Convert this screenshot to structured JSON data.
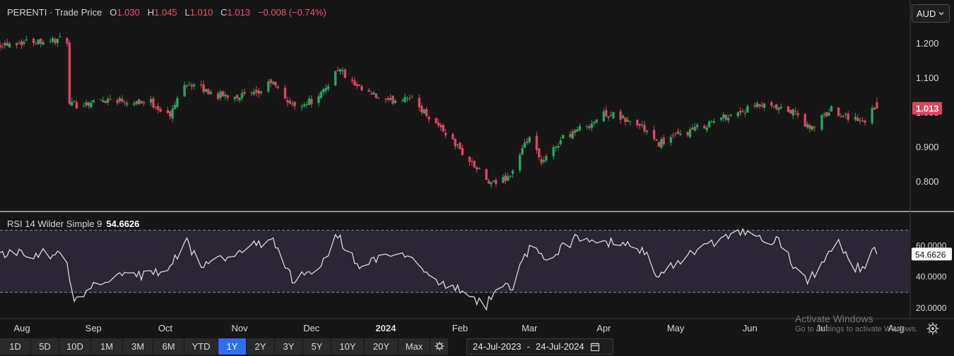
{
  "legend": {
    "title": "PERENTI · Trade Price",
    "open_key": "O",
    "open": "1.030",
    "high_key": "H",
    "high": "1.045",
    "low_key": "L",
    "low": "1.010",
    "close_key": "C",
    "close": "1.013",
    "change": "−0.008 (−0.74%)"
  },
  "rsi": {
    "label": "RSI 14 Wilder Simple 9",
    "value": "54.6626"
  },
  "currency": {
    "label": "AUD",
    "icon": "chevron-down-icon"
  },
  "range_buttons": [
    "1D",
    "5D",
    "10D",
    "1M",
    "3M",
    "6M",
    "YTD",
    "1Y",
    "2Y",
    "3Y",
    "5Y",
    "10Y",
    "20Y",
    "Max"
  ],
  "active_range": "1Y",
  "date_range": {
    "from": "24-Jul-2023",
    "separator": "-",
    "to": "24-Jul-2024",
    "icon": "calendar-icon"
  },
  "watermark": {
    "line1": "Activate Windows",
    "line2": "Go to Settings to activate Windows."
  },
  "colors": {
    "up": "#26a65b",
    "down": "#e0435e",
    "rsi_line": "#d9d9d9",
    "rsi_band": "#2b2535",
    "active": "#2f6ef7",
    "background": "#161616"
  },
  "chart_data": [
    {
      "type": "candlestick",
      "title": "PERENTI · Trade Price",
      "price_axis": {
        "ticks": [
          "1.200",
          "1.100",
          "1.000",
          "0.900",
          "0.800"
        ],
        "ylim": [
          0.755,
          1.245
        ]
      },
      "last_price_label": "1.013",
      "time_axis": [
        "Aug",
        "Sep",
        "Oct",
        "Nov",
        "Dec",
        "2024",
        "Feb",
        "Mar",
        "Apr",
        "May",
        "Jun",
        "Jul",
        "Aug"
      ],
      "grid": false,
      "ohlc_anchor_closes": [
        [
          "2023-07-24",
          1.2
        ],
        [
          "2023-08-10",
          1.21
        ],
        [
          "2023-08-21",
          1.21
        ],
        [
          "2023-08-22",
          1.02
        ],
        [
          "2023-09-08",
          1.04
        ],
        [
          "2023-09-25",
          1.03
        ],
        [
          "2023-10-03",
          0.99
        ],
        [
          "2023-10-09",
          1.09
        ],
        [
          "2023-10-23",
          1.05
        ],
        [
          "2023-11-08",
          1.05
        ],
        [
          "2023-11-14",
          1.09
        ],
        [
          "2023-11-23",
          1.02
        ],
        [
          "2023-12-04",
          1.04
        ],
        [
          "2023-12-12",
          1.13
        ],
        [
          "2023-12-20",
          1.07
        ],
        [
          "2024-01-02",
          1.03
        ],
        [
          "2024-01-10",
          1.05
        ],
        [
          "2024-01-25",
          0.95
        ],
        [
          "2024-02-05",
          0.86
        ],
        [
          "2024-02-14",
          0.79
        ],
        [
          "2024-02-22",
          0.82
        ],
        [
          "2024-03-01",
          0.93
        ],
        [
          "2024-03-06",
          0.85
        ],
        [
          "2024-03-15",
          0.93
        ],
        [
          "2024-03-27",
          0.97
        ],
        [
          "2024-04-02",
          1.0
        ],
        [
          "2024-04-17",
          0.96
        ],
        [
          "2024-04-23",
          0.91
        ],
        [
          "2024-05-08",
          0.95
        ],
        [
          "2024-05-22",
          0.99
        ],
        [
          "2024-06-05",
          1.02
        ],
        [
          "2024-06-20",
          1.0
        ],
        [
          "2024-06-26",
          0.95
        ],
        [
          "2024-07-05",
          1.01
        ],
        [
          "2024-07-16",
          0.98
        ],
        [
          "2024-07-19",
          0.97
        ],
        [
          "2024-07-22",
          1.02
        ],
        [
          "2024-07-24",
          1.013
        ]
      ]
    },
    {
      "type": "line",
      "title": "RSI 14 Wilder Simple 9",
      "y_axis": {
        "ticks": [
          "60.0000",
          "40.0000",
          "20.0000"
        ],
        "ylim": [
          14,
          73
        ]
      },
      "band": [
        30,
        70
      ],
      "last_value_label": "54.6626",
      "anchor_values": [
        [
          "2023-07-24",
          55
        ],
        [
          "2023-08-20",
          55
        ],
        [
          "2023-08-24",
          27
        ],
        [
          "2023-09-05",
          38
        ],
        [
          "2023-09-26",
          42
        ],
        [
          "2023-10-03",
          45
        ],
        [
          "2023-10-09",
          64
        ],
        [
          "2023-10-16",
          48
        ],
        [
          "2023-11-01",
          55
        ],
        [
          "2023-11-14",
          65
        ],
        [
          "2023-11-23",
          38
        ],
        [
          "2023-12-04",
          45
        ],
        [
          "2023-12-12",
          67
        ],
        [
          "2023-12-20",
          47
        ],
        [
          "2024-01-10",
          55
        ],
        [
          "2024-01-24",
          36
        ],
        [
          "2024-02-05",
          28
        ],
        [
          "2024-02-12",
          22
        ],
        [
          "2024-02-15",
          32
        ],
        [
          "2024-02-23",
          34
        ],
        [
          "2024-03-01",
          60
        ],
        [
          "2024-03-07",
          52
        ],
        [
          "2024-03-20",
          64
        ],
        [
          "2024-04-03",
          62
        ],
        [
          "2024-04-17",
          58
        ],
        [
          "2024-04-23",
          42
        ],
        [
          "2024-05-06",
          54
        ],
        [
          "2024-05-20",
          63
        ],
        [
          "2024-05-29",
          69
        ],
        [
          "2024-06-07",
          62
        ],
        [
          "2024-06-13",
          64
        ],
        [
          "2024-06-20",
          44
        ],
        [
          "2024-06-26",
          38
        ],
        [
          "2024-07-02",
          53
        ],
        [
          "2024-07-08",
          62
        ],
        [
          "2024-07-12",
          50
        ],
        [
          "2024-07-19",
          42
        ],
        [
          "2024-07-22",
          57
        ],
        [
          "2024-07-24",
          54.6626
        ]
      ]
    }
  ]
}
